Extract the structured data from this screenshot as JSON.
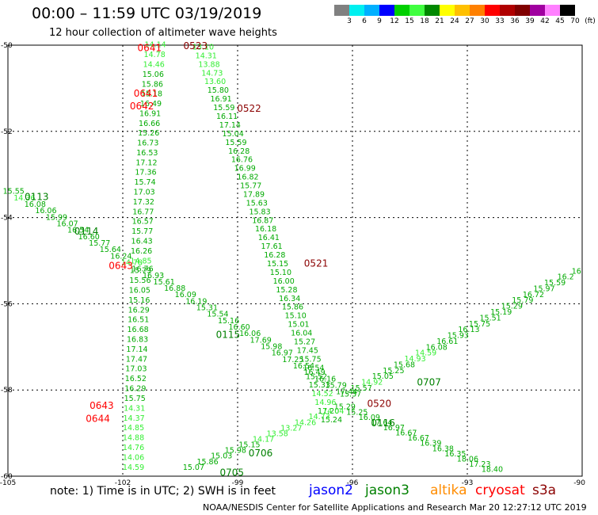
{
  "header": {
    "title": "00:00 – 11:59 UTC 03/19/2019",
    "subtitle": "12 hour collection of altimeter wave heights"
  },
  "legend": {
    "labels": [
      "3",
      "6",
      "9",
      "12",
      "15",
      "18",
      "21",
      "24",
      "27",
      "30",
      "33",
      "36",
      "39",
      "42",
      "45",
      "70",
      "(ft)"
    ],
    "colors": [
      "#808080",
      "#00f0f0",
      "#00b0ff",
      "#0000ff",
      "#00d000",
      "#40ff40",
      "#008800",
      "#ffff00",
      "#ffc000",
      "#ff8000",
      "#ff0000",
      "#b00000",
      "#800000",
      "#a000a0",
      "#ff80ff",
      "#000000"
    ]
  },
  "footer": {
    "note": "note:  1) Time is in UTC;  2) SWH is in feet",
    "missions": [
      {
        "name": "jason2",
        "color": "#0000ff"
      },
      {
        "name": "jason3",
        "color": "#008000"
      },
      {
        "name": "altika",
        "color": "#ff8c00"
      },
      {
        "name": "cryosat",
        "color": "#ff0000"
      },
      {
        "name": "s3a",
        "color": "#8b0000"
      }
    ],
    "credit": "NOAA/NESDIS Center for Satellite Applications and Research    Mar 20 12:27:12 UTC 2019"
  },
  "chart_data": {
    "type": "scatter",
    "title": "00:00 – 11:59 UTC 03/19/2019",
    "subtitle": "12 hour collection of altimeter wave heights",
    "xlim": [
      -105,
      -90
    ],
    "ylim": [
      -60,
      -50
    ],
    "x_ticks": [
      -105,
      -102,
      -99,
      -96,
      -93,
      -90
    ],
    "y_ticks": [
      -50,
      -52,
      -54,
      -56,
      -58,
      -60
    ],
    "grid": true,
    "tracks": [
      {
        "time": "0641",
        "satellite": "jason3",
        "values": [
          "14.14",
          "14.78",
          "14.46",
          "15.06",
          "15.86",
          "15.18",
          "16.49",
          "16.91",
          "16.66",
          "15.26",
          "16.73",
          "16.53",
          "17.12",
          "17.36",
          "15.74",
          "17.03",
          "17.32",
          "16.77",
          "16.57",
          "15.77",
          "16.43",
          "16.26",
          "14.85",
          "15.79",
          "15.56",
          "16.05",
          "15.16",
          "16.29",
          "16.51",
          "16.68",
          "16.83",
          "17.14",
          "17.47",
          "17.03",
          "16.52",
          "16.29",
          "15.75",
          "14.31",
          "14.37",
          "14.85",
          "14.88",
          "14.76",
          "14.06",
          "14.59"
        ]
      },
      {
        "time": "0523",
        "satellite": "jason3",
        "values": [
          "13.10",
          "14.31",
          "13.88",
          "14.73",
          "13.60",
          "15.80",
          "16.91",
          "15.59",
          "16.11",
          "17.14",
          "15.04",
          "15.59",
          "16.28",
          "16.76",
          "16.99",
          "16.82",
          "15.77",
          "17.89",
          "15.63",
          "15.83",
          "16.87",
          "16.18",
          "16.41",
          "17.61",
          "16.28",
          "15.15",
          "15.10",
          "16.00",
          "15.28",
          "16.34",
          "15.86",
          "15.10",
          "15.01",
          "16.04",
          "15.27",
          "17.45",
          "15.75",
          "16.54",
          "15.52",
          "15.33",
          "14.52",
          "14.96",
          "17.20",
          "15.24"
        ]
      },
      {
        "time": "0113",
        "satellite": "jason3",
        "values": [
          "15.55",
          "14.36",
          "16.08",
          "16.06",
          "15.99",
          "16.07",
          "16.54",
          "16.60",
          "15.77",
          "15.64",
          "16.24",
          "14.78",
          "16.76",
          "16.93",
          "15.61",
          "16.88",
          "16.09",
          "16.19",
          "15.31",
          "15.54",
          "15.16",
          "16.60",
          "16.06",
          "17.69",
          "15.98",
          "16.97",
          "17.25",
          "16.54",
          "16.49",
          "16.16",
          "15.79",
          "17.44"
        ]
      },
      {
        "time": "0707",
        "satellite": "jason3",
        "values": [
          "16",
          "16.2",
          "15.59",
          "15.97",
          "16.72",
          "15.79",
          "15.29",
          "15.19",
          "15.51",
          "15.75",
          "16.13",
          "15.93",
          "16.61",
          "16.08",
          "14.59",
          "14.93",
          "15.68",
          "15.25",
          "15.05",
          "14.92",
          "15.57",
          "15.37"
        ]
      },
      {
        "time": "0116",
        "satellite": "jason3",
        "values": [
          "15.29",
          "15.25",
          "16.09",
          "17.64",
          "16.97",
          "16.67",
          "16.67",
          "16.39",
          "16.38",
          "16.35",
          "18.06",
          "17.23",
          "18.40"
        ]
      },
      {
        "time": "0706",
        "satellite": "jason3",
        "values": [
          "14.04",
          "14.73",
          "14.26",
          "13.27",
          "13.58",
          "14.17",
          "15.15",
          "15.98",
          "15.03",
          "15.86",
          "15.07"
        ]
      }
    ],
    "point_labels": [
      {
        "text": "0641",
        "color": "#ff0000",
        "lon": -101.3,
        "lat": -50.05
      },
      {
        "text": "0523",
        "color": "#8b0000",
        "lon": -100.1,
        "lat": -50.0
      },
      {
        "text": "0641",
        "color": "#ff0000",
        "lon": -101.4,
        "lat": -51.1
      },
      {
        "text": "0642",
        "color": "#ff0000",
        "lon": -101.5,
        "lat": -51.4
      },
      {
        "text": "0522",
        "color": "#8b0000",
        "lon": -98.7,
        "lat": -51.45
      },
      {
        "text": "0113",
        "color": "#008000",
        "lon": -104.25,
        "lat": -53.5
      },
      {
        "text": "0114",
        "color": "#008000",
        "lon": -102.95,
        "lat": -54.3
      },
      {
        "text": "0643",
        "color": "#ff0000",
        "lon": -102.05,
        "lat": -55.1
      },
      {
        "text": "0521",
        "color": "#8b0000",
        "lon": -96.95,
        "lat": -55.05
      },
      {
        "text": "0115",
        "color": "#008000",
        "lon": -99.25,
        "lat": -56.7
      },
      {
        "text": "0707",
        "color": "#008000",
        "lon": -94.0,
        "lat": -57.8
      },
      {
        "text": "0643",
        "color": "#ff0000",
        "lon": -102.55,
        "lat": -58.35
      },
      {
        "text": "0644",
        "color": "#ff0000",
        "lon": -102.65,
        "lat": -58.65
      },
      {
        "text": "0520",
        "color": "#8b0000",
        "lon": -95.3,
        "lat": -58.3
      },
      {
        "text": "0116",
        "color": "#008000",
        "lon": -95.2,
        "lat": -58.75
      },
      {
        "text": "0706",
        "color": "#008000",
        "lon": -98.4,
        "lat": -59.45
      },
      {
        "text": "0705",
        "color": "#008000",
        "lon": -99.15,
        "lat": -59.9
      }
    ]
  }
}
